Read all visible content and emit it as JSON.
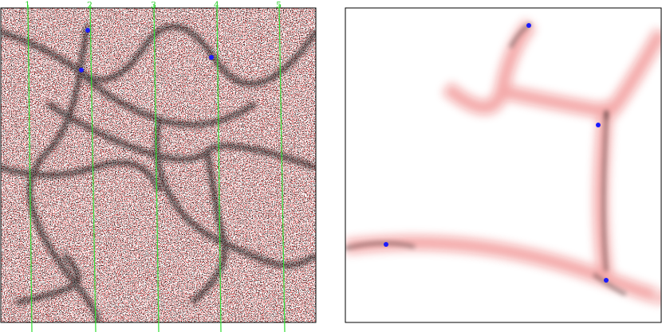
{
  "markers": [
    "1",
    "2",
    "3",
    "4",
    "5"
  ]
}
